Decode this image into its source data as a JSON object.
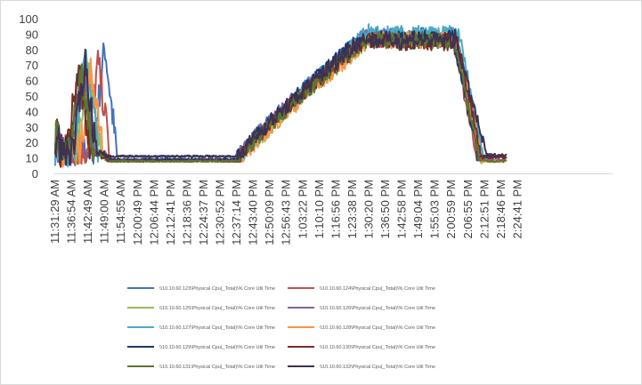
{
  "chart_data": {
    "type": "line",
    "title": "",
    "xlabel": "",
    "ylabel": "",
    "ylim": [
      0,
      100
    ],
    "yticks": [
      0,
      10,
      20,
      30,
      40,
      50,
      60,
      70,
      80,
      90,
      100
    ],
    "grid": false,
    "legend_position": "bottom",
    "x_tick_labels": [
      "11:31:29 AM",
      "11:36:54 AM",
      "11:42:49 AM",
      "11:49:00 AM",
      "11:54:55 AM",
      "12:00:49 PM",
      "12:06:44 PM",
      "12:12:41 PM",
      "12:18:36 PM",
      "12:24:37 PM",
      "12:30:52 PM",
      "12:37:14 PM",
      "12:43:40 PM",
      "12:50:09 PM",
      "12:56:43 PM",
      "1:03:22 PM",
      "1:10:10 PM",
      "1:16:56 PM",
      "1:23:38 PM",
      "1:30:20 PM",
      "1:36:50 PM",
      "1:42:58 PM",
      "1:49:04 PM",
      "1:55:03 PM",
      "2:00:59 PM",
      "2:06:55 PM",
      "2:12:51 PM",
      "2:18:46 PM",
      "2:24:41 PM"
    ],
    "series": [
      {
        "name": "\\\\10.10.60.123\\Physical Cpu(_Total)\\% Core Util Time",
        "color": "#4472c4",
        "spike": 83,
        "spike_at": 3.0,
        "idle": 11,
        "peak": 92,
        "ramp_start": 11.0,
        "ramp_end": 19.0,
        "fall_start": 24.2,
        "fall_end": 25.9,
        "tail": 11
      },
      {
        "name": "\\\\10.10.60.124\\Physical Cpu(_Total)\\% Core Util Time",
        "color": "#c0504d",
        "spike": 72,
        "spike_at": 2.6,
        "idle": 8,
        "peak": 90,
        "ramp_start": 11.1,
        "ramp_end": 19.0,
        "fall_start": 24.0,
        "fall_end": 25.6,
        "tail": 8
      },
      {
        "name": "\\\\10.10.60.125\\Physical Cpu(_Total)\\% Core Util Time",
        "color": "#9bbb59",
        "spike": 76,
        "spike_at": 2.0,
        "idle": 8,
        "peak": 89,
        "ramp_start": 11.3,
        "ramp_end": 19.3,
        "fall_start": 24.3,
        "fall_end": 25.8,
        "tail": 8
      },
      {
        "name": "\\\\10.10.60.126\\Physical Cpu(_Total)\\% Core Util Time",
        "color": "#8064a2",
        "spike": 70,
        "spike_at": 1.7,
        "idle": 9,
        "peak": 90,
        "ramp_start": 11.0,
        "ramp_end": 18.9,
        "fall_start": 24.1,
        "fall_end": 25.7,
        "tail": 9
      },
      {
        "name": "\\\\10.10.60.127\\Physical Cpu(_Total)\\% Core Util Time",
        "color": "#4bacc6",
        "spike": 79,
        "spike_at": 1.9,
        "idle": 8,
        "peak": 93,
        "ramp_start": 11.2,
        "ramp_end": 19.1,
        "fall_start": 24.4,
        "fall_end": 26.0,
        "tail": 8
      },
      {
        "name": "\\\\10.10.60.128\\Physical Cpu(_Total)\\% Core Util Time",
        "color": "#f79646",
        "spike": 68,
        "spike_at": 2.2,
        "idle": 8,
        "peak": 89,
        "ramp_start": 11.4,
        "ramp_end": 19.4,
        "fall_start": 24.2,
        "fall_end": 25.9,
        "tail": 8
      },
      {
        "name": "\\\\10.10.60.129\\Physical Cpu(_Total)\\% Core Util Time",
        "color": "#1f3864",
        "spike": 71,
        "spike_at": 1.5,
        "idle": 9,
        "peak": 90,
        "ramp_start": 11.0,
        "ramp_end": 18.8,
        "fall_start": 24.0,
        "fall_end": 25.6,
        "tail": 11
      },
      {
        "name": "\\\\10.10.60.130\\Physical Cpu(_Total)\\% Core Util Time",
        "color": "#772c2a",
        "spike": 67,
        "spike_at": 1.4,
        "idle": 8,
        "peak": 88,
        "ramp_start": 11.1,
        "ramp_end": 19.0,
        "fall_start": 24.3,
        "fall_end": 25.8,
        "tail": 10
      },
      {
        "name": "\\\\10.10.60.131\\Physical Cpu(_Total)\\% Core Util Time",
        "color": "#5f7530",
        "spike": 66,
        "spike_at": 1.6,
        "idle": 8,
        "peak": 89,
        "ramp_start": 11.2,
        "ramp_end": 19.2,
        "fall_start": 24.1,
        "fall_end": 25.7,
        "tail": 8
      },
      {
        "name": "\\\\10.10.60.132\\Physical Cpu(_Total)\\% Core Util Time",
        "color": "#3f3151",
        "spike": 72,
        "spike_at": 1.8,
        "idle": 11,
        "peak": 89,
        "ramp_start": 11.0,
        "ramp_end": 18.9,
        "fall_start": 24.2,
        "fall_end": 26.1,
        "tail": 12
      }
    ]
  }
}
